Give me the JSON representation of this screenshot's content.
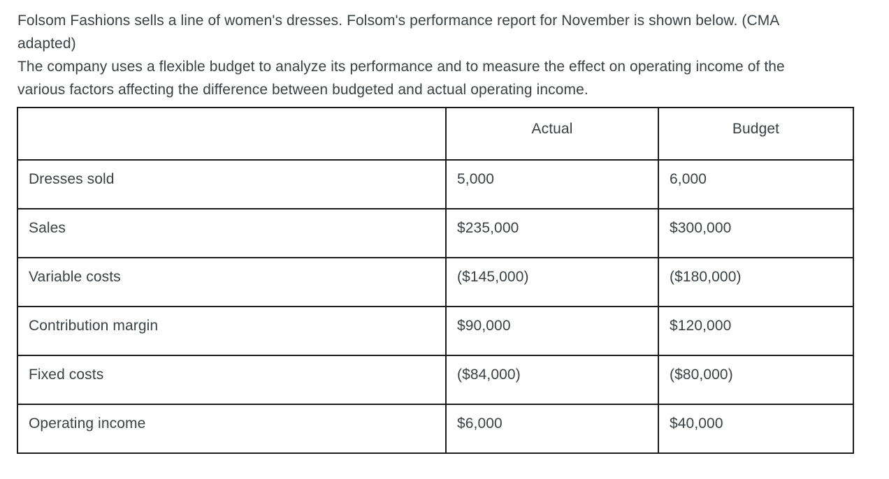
{
  "intro": {
    "paragraph1": "Folsom Fashions sells a line of women's dresses. Folsom's performance report for November is shown below. (CMA adapted)",
    "paragraph2": "The company uses a flexible budget to analyze its performance and to measure the effect on operating income of the various factors affecting the difference between budgeted and actual operating income."
  },
  "table": {
    "columns": [
      "",
      "Actual",
      "Budget"
    ],
    "rows": [
      {
        "label": "Dresses sold",
        "actual": "5,000",
        "budget": "6,000"
      },
      {
        "label": "Sales",
        "actual": "$235,000",
        "budget": "$300,000"
      },
      {
        "label": "Variable costs",
        "actual": "($145,000)",
        "budget": "($180,000)"
      },
      {
        "label": "Contribution margin",
        "actual": "$90,000",
        "budget": "$120,000"
      },
      {
        "label": "Fixed costs",
        "actual": "($84,000)",
        "budget": "($80,000)"
      },
      {
        "label": "Operating income",
        "actual": "$6,000",
        "budget": "$40,000"
      }
    ]
  },
  "colors": {
    "text": "#3b4045",
    "border": "#1b1b1b",
    "background": "#ffffff"
  }
}
